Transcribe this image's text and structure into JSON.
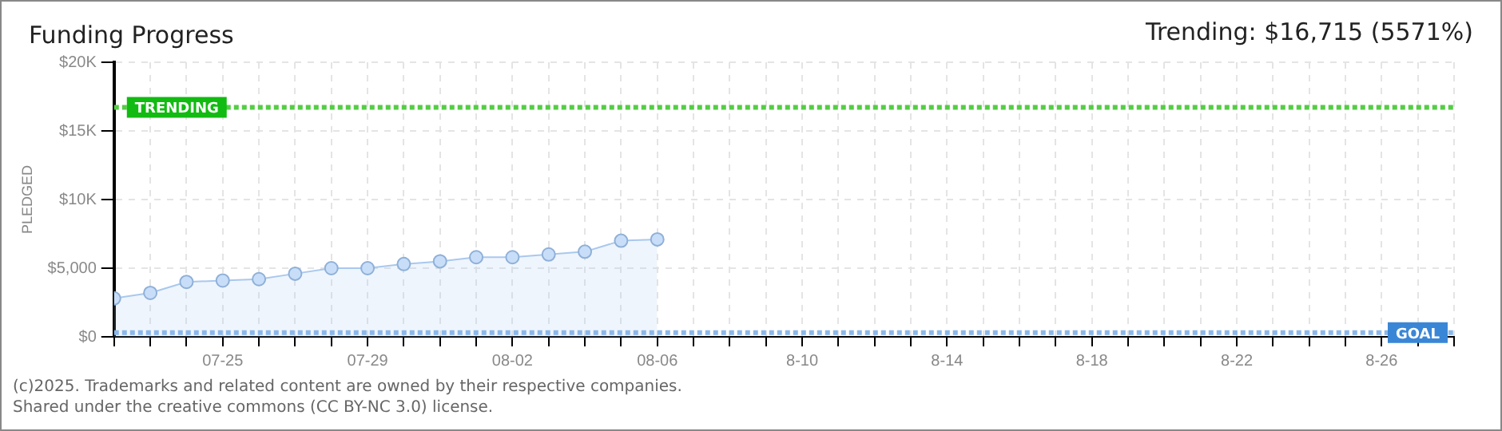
{
  "chart_data": {
    "type": "area",
    "title": "Funding Progress",
    "subtitle": "Trending: $16,715 (5571%)",
    "ylabel": "PLEDGED",
    "x": [
      "--07-22",
      "--07-23",
      "--07-24",
      "--07-25",
      "--07-26",
      "--07-27",
      "--07-28",
      "--07-29",
      "--07-30",
      "--07-31",
      "--08-01",
      "--08-02",
      "--08-03",
      "--08-04",
      "--08-05",
      "--08-06"
    ],
    "series": [
      {
        "color": "#a9c8ee",
        "values": [
          2800,
          3200,
          4000,
          4100,
          4200,
          4600,
          5000,
          5000,
          5300,
          5500,
          5800,
          5800,
          6000,
          6200,
          7000,
          7100
        ]
      }
    ],
    "marker": "circle",
    "grid": true,
    "legend": false,
    "xlim": [
      "--07-22",
      "--08-28"
    ],
    "xticks": [
      {
        "value": "--07-22",
        "label": null
      },
      {
        "value": "--07-23",
        "label": null
      },
      {
        "value": "--07-24",
        "label": null
      },
      {
        "value": "--07-25",
        "label": "07-25"
      },
      {
        "value": "--07-26",
        "label": null
      },
      {
        "value": "--07-27",
        "label": null
      },
      {
        "value": "--07-28",
        "label": null
      },
      {
        "value": "--07-29",
        "label": "07-29"
      },
      {
        "value": "--07-30",
        "label": null
      },
      {
        "value": "--07-31",
        "label": null
      },
      {
        "value": "--08-01",
        "label": null
      },
      {
        "value": "--08-02",
        "label": "08-02"
      },
      {
        "value": "--08-03",
        "label": null
      },
      {
        "value": "--08-04",
        "label": null
      },
      {
        "value": "--08-05",
        "label": null
      },
      {
        "value": "--08-06",
        "label": "08-06"
      },
      {
        "value": "--08-07",
        "label": null
      },
      {
        "value": "--08-08",
        "label": null
      },
      {
        "value": "--08-09",
        "label": null
      },
      {
        "value": "--08-10",
        "label": "8-10"
      },
      {
        "value": "--08-11",
        "label": null
      },
      {
        "value": "--08-12",
        "label": null
      },
      {
        "value": "--08-13",
        "label": null
      },
      {
        "value": "--08-14",
        "label": "8-14"
      },
      {
        "value": "--08-15",
        "label": null
      },
      {
        "value": "--08-16",
        "label": null
      },
      {
        "value": "--08-17",
        "label": null
      },
      {
        "value": "--08-18",
        "label": "8-18"
      },
      {
        "value": "--08-19",
        "label": null
      },
      {
        "value": "--08-20",
        "label": null
      },
      {
        "value": "--08-21",
        "label": null
      },
      {
        "value": "--08-22",
        "label": "8-22"
      },
      {
        "value": "--08-23",
        "label": null
      },
      {
        "value": "--08-24",
        "label": null
      },
      {
        "value": "--08-25",
        "label": null
      },
      {
        "value": "--08-26",
        "label": "8-26"
      },
      {
        "value": "--08-27",
        "label": null
      },
      {
        "value": "--08-28",
        "label": null
      }
    ],
    "ylim": [
      0,
      20000
    ],
    "yticks": [
      {
        "value": 0,
        "label": "$0"
      },
      {
        "value": 5000,
        "label": "$5,000"
      },
      {
        "value": 10000,
        "label": "$10K"
      },
      {
        "value": 15000,
        "label": "$15K"
      },
      {
        "value": 20000,
        "label": "$20K"
      }
    ],
    "ref_lines": [
      {
        "axis": "y",
        "value": 16715,
        "label": "TRENDING",
        "color": "#55cc44",
        "line_style": "dotted"
      },
      {
        "axis": "y",
        "value": 300,
        "label": "GOAL",
        "color": "#8ab8ea",
        "line_style": "dotted"
      }
    ],
    "annotations": [
      "(c)2025. Trademarks and related content are owned by their respective companies.",
      "Shared under the creative commons (CC BY-NC 3.0) license."
    ]
  }
}
